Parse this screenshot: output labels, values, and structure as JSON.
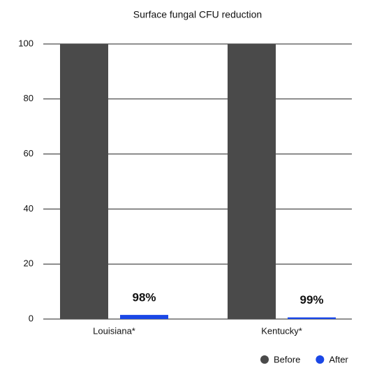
{
  "chart_data": {
    "type": "bar",
    "title": "Surface fungal CFU reduction",
    "categories": [
      "Louisiana*",
      "Kentucky*"
    ],
    "series": [
      {
        "name": "Before",
        "color": "#4a4a4a",
        "values": [
          100,
          100
        ]
      },
      {
        "name": "After",
        "color": "#1a47e6",
        "values": [
          1.5,
          0.6
        ]
      }
    ],
    "annotations": [
      "98%",
      "99%"
    ],
    "ylim": [
      0,
      100
    ],
    "yticks": [
      0,
      20,
      40,
      60,
      80,
      100
    ],
    "grid": true
  }
}
